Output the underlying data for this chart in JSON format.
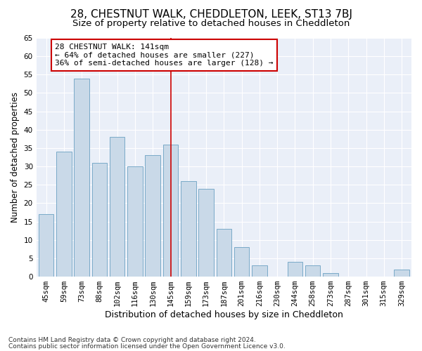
{
  "title": "28, CHESTNUT WALK, CHEDDLETON, LEEK, ST13 7BJ",
  "subtitle": "Size of property relative to detached houses in Cheddleton",
  "xlabel": "Distribution of detached houses by size in Cheddleton",
  "ylabel": "Number of detached properties",
  "categories": [
    "45sqm",
    "59sqm",
    "73sqm",
    "88sqm",
    "102sqm",
    "116sqm",
    "130sqm",
    "145sqm",
    "159sqm",
    "173sqm",
    "187sqm",
    "201sqm",
    "216sqm",
    "230sqm",
    "244sqm",
    "258sqm",
    "273sqm",
    "287sqm",
    "301sqm",
    "315sqm",
    "329sqm"
  ],
  "values": [
    17,
    34,
    54,
    31,
    38,
    30,
    33,
    36,
    26,
    24,
    13,
    8,
    3,
    0,
    4,
    3,
    1,
    0,
    0,
    0,
    2
  ],
  "bar_color": "#c9d9e8",
  "bar_edge_color": "#7aaac8",
  "vline_x": 7,
  "vline_color": "#cc0000",
  "annotation_text": "28 CHESTNUT WALK: 141sqm\n← 64% of detached houses are smaller (227)\n36% of semi-detached houses are larger (128) →",
  "annotation_box_color": "white",
  "annotation_box_edge_color": "#cc0000",
  "ylim": [
    0,
    65
  ],
  "yticks": [
    0,
    5,
    10,
    15,
    20,
    25,
    30,
    35,
    40,
    45,
    50,
    55,
    60,
    65
  ],
  "background_color": "#eaeff8",
  "grid_color": "white",
  "footer_line1": "Contains HM Land Registry data © Crown copyright and database right 2024.",
  "footer_line2": "Contains public sector information licensed under the Open Government Licence v3.0.",
  "title_fontsize": 11,
  "subtitle_fontsize": 9.5,
  "xlabel_fontsize": 9,
  "ylabel_fontsize": 8.5,
  "tick_fontsize": 7.5,
  "annot_fontsize": 8,
  "footer_fontsize": 6.5
}
